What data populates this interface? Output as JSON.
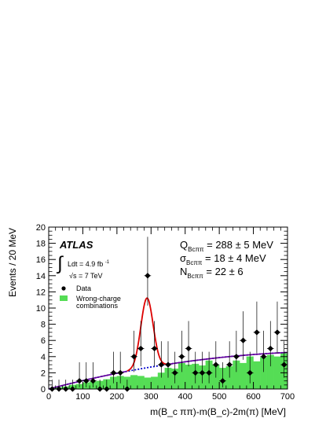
{
  "chart_data": {
    "type": "histogram",
    "xlabel": "m(B_c ππ)-m(B_c)-2m(π) [MeV]",
    "ylabel": "Events / 20 MeV",
    "xlim": [
      0,
      700
    ],
    "ylim": [
      0,
      20
    ],
    "x_ticks": [
      0,
      100,
      200,
      300,
      400,
      500,
      600,
      700
    ],
    "y_ticks": [
      0,
      2,
      4,
      6,
      8,
      10,
      12,
      14,
      16,
      18,
      20
    ],
    "bin_width": 20,
    "experiment_label": "ATLAS",
    "lumi_text": "Ldt = 4.9 fb",
    "lumi_sup": "-1",
    "energy_text": "√s = 7 TeV",
    "legend": [
      {
        "label": "Data",
        "marker": "point"
      },
      {
        "label": "Wrong-charge combinations",
        "marker": "green-box"
      }
    ],
    "fit_params": [
      {
        "symbol": "Q",
        "sub": "Bcππ",
        "text": " = 288 ± 5 MeV"
      },
      {
        "symbol": "σ",
        "sub": "Bcππ",
        "text": " = 18 ± 4 MeV"
      },
      {
        "symbol": "N",
        "sub": "Bcππ",
        "text": " = 22 ± 6"
      }
    ],
    "wrong_charge_histogram": {
      "bin_low_edges": [
        0,
        20,
        40,
        60,
        80,
        100,
        120,
        140,
        160,
        180,
        200,
        220,
        240,
        260,
        280,
        300,
        320,
        340,
        360,
        380,
        400,
        420,
        440,
        460,
        480,
        500,
        520,
        540,
        560,
        580,
        600,
        620,
        640,
        660,
        680
      ],
      "values": [
        0.1,
        0.2,
        0.3,
        0.5,
        0.6,
        0.8,
        0.9,
        1.0,
        1.2,
        1.5,
        1.6,
        1.5,
        1.7,
        1.6,
        1.4,
        1.5,
        2.0,
        2.6,
        2.5,
        3.2,
        3.0,
        3.1,
        2.9,
        3.5,
        3.0,
        2.6,
        2.8,
        3.5,
        3.2,
        4.0,
        3.4,
        3.9,
        4.2,
        4.0,
        4.4
      ]
    },
    "data_points": {
      "x": [
        10,
        30,
        50,
        70,
        90,
        110,
        130,
        150,
        170,
        190,
        210,
        230,
        250,
        270,
        290,
        310,
        330,
        350,
        370,
        390,
        410,
        430,
        450,
        470,
        490,
        510,
        530,
        550,
        570,
        590,
        610,
        630,
        650,
        670,
        690
      ],
      "y": [
        0,
        0,
        0,
        0,
        1,
        1,
        1,
        0,
        0,
        2,
        2,
        0,
        4,
        5,
        14,
        5,
        3,
        3,
        2,
        4,
        5,
        2,
        2,
        2,
        3,
        1,
        3,
        4,
        6,
        2,
        7,
        4,
        5,
        7,
        3
      ],
      "err_up": [
        1.15,
        1.15,
        1.15,
        1.15,
        2.3,
        2.3,
        2.3,
        1.15,
        1.15,
        2.6,
        2.6,
        1.15,
        3.2,
        3.4,
        4.8,
        3.4,
        2.9,
        2.9,
        2.6,
        3.2,
        3.4,
        2.6,
        2.6,
        2.6,
        2.9,
        2.3,
        2.9,
        3.2,
        3.6,
        2.6,
        3.8,
        3.2,
        3.4,
        3.8,
        2.9
      ],
      "err_down": [
        0,
        0,
        0,
        0,
        0.8,
        0.8,
        0.8,
        0,
        0,
        1.3,
        1.3,
        0,
        1.9,
        2.2,
        3.7,
        2.2,
        1.6,
        1.6,
        1.3,
        1.9,
        2.2,
        1.3,
        1.3,
        1.3,
        1.6,
        0.8,
        1.6,
        1.9,
        2.4,
        1.3,
        2.6,
        1.9,
        2.2,
        2.6,
        1.6
      ]
    },
    "fit_curves": {
      "background_coeffs": [
        0,
        0.011,
        -6.5e-06
      ],
      "signal_mean": 288,
      "signal_sigma": 18,
      "signal_amplitude": 8.6,
      "total_color": "#dd0000",
      "background_color": "#0000cc",
      "bg_extrapolation_color": "#660099"
    },
    "histogram_color": "#55dd55"
  }
}
